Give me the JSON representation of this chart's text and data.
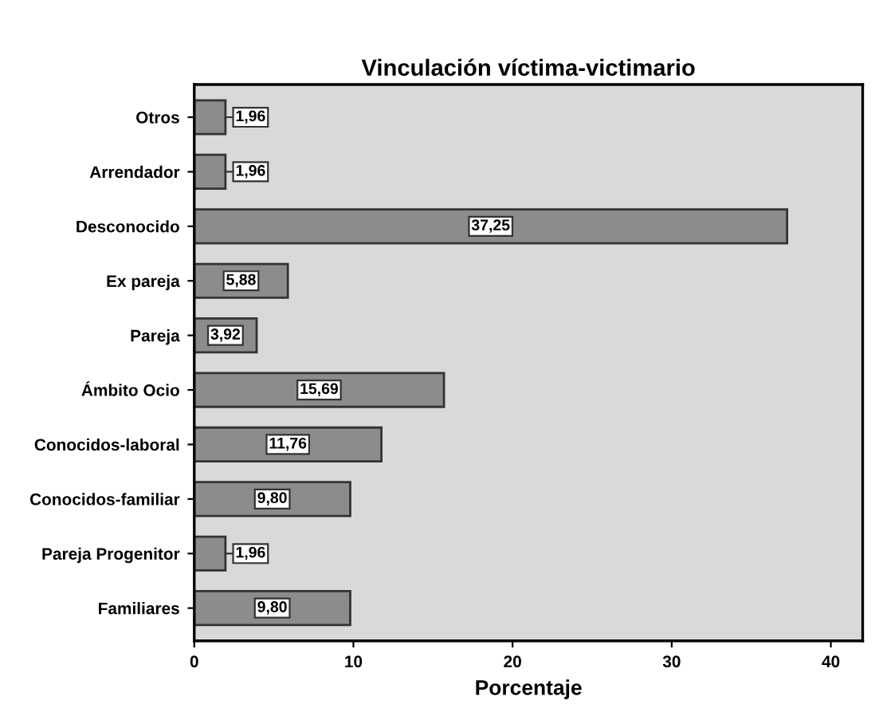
{
  "chart_data": {
    "type": "bar",
    "orientation": "horizontal",
    "title": "Vinculación víctima-victimario",
    "xlabel": "Porcentaje",
    "categories": [
      "Otros",
      "Arrendador",
      "Desconocido",
      "Ex pareja",
      "Pareja",
      "Ámbito Ocio",
      "Conocidos-laboral",
      "Conocidos-familiar",
      "Pareja Progenitor",
      "Familiares"
    ],
    "values": [
      1.96,
      1.96,
      37.25,
      5.88,
      3.92,
      15.69,
      11.76,
      9.8,
      1.96,
      9.8
    ],
    "value_labels": [
      "1,96",
      "1,96",
      "37,25",
      "5,88",
      "3,92",
      "15,69",
      "11,76",
      "9,80",
      "1,96",
      "9,80"
    ],
    "color": "#8c8c8c",
    "xlim": [
      0,
      42
    ],
    "xticks": [
      0,
      10,
      20,
      30,
      40
    ],
    "grid": false,
    "legend": false
  }
}
